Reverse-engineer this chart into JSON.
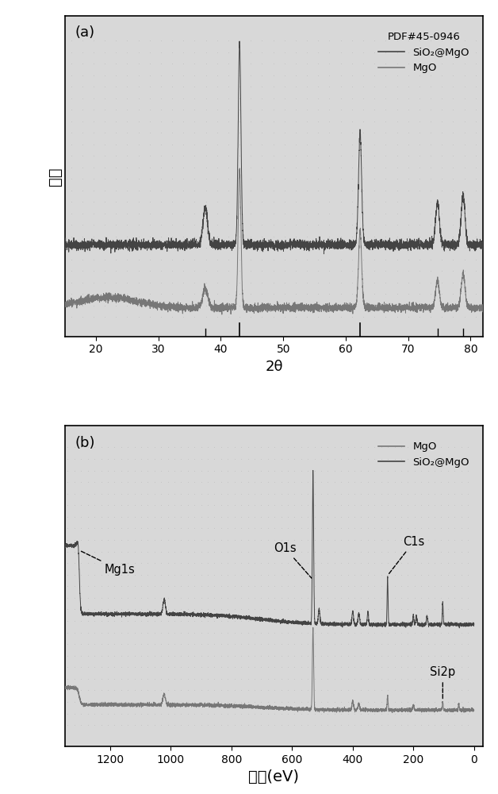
{
  "panel_a": {
    "label": "(a)",
    "xlabel": "2θ",
    "ylabel": "强度",
    "xlim": [
      15,
      82
    ],
    "xticks": [
      20,
      30,
      40,
      50,
      60,
      70,
      80
    ],
    "legend_title": "PDF#45-0946",
    "legend_entries": [
      "SiO₂@MgO",
      "MgO"
    ],
    "pdf_markers": [
      43.0,
      62.3
    ],
    "mgo_peaks": [
      43.0,
      62.3,
      74.7,
      78.8
    ],
    "sio2mgo_peaks": [
      37.5,
      43.0,
      62.3,
      74.7,
      78.8
    ],
    "color_line": "#555555",
    "color_line2": "#777777"
  },
  "panel_b": {
    "label": "(b)",
    "xlabel": "能带(eV)",
    "xlim": [
      1350,
      -30
    ],
    "xticks": [
      1200,
      1000,
      800,
      600,
      400,
      200,
      0
    ],
    "legend_entries": [
      "MgO",
      "SiO₂@MgO"
    ],
    "color_line": "#555555",
    "color_line2": "#777777"
  },
  "bg_color": "#e8e8e8",
  "line_color_dark": "#444444",
  "line_color_mid": "#777777",
  "figure_bg": "#ffffff"
}
